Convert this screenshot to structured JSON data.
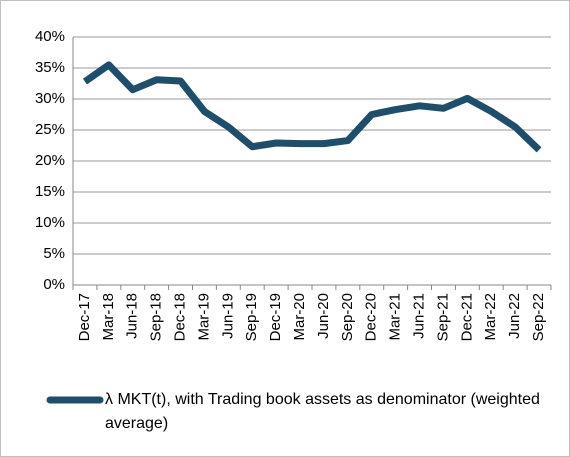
{
  "chart_data": {
    "type": "line",
    "categories": [
      "Dec-17",
      "Mar-18",
      "Jun-18",
      "Sep-18",
      "Dec-18",
      "Mar-19",
      "Jun-19",
      "Sep-19",
      "Dec-19",
      "Mar-20",
      "Jun-20",
      "Sep-20",
      "Dec-20",
      "Mar-21",
      "Jun-21",
      "Sep-21",
      "Dec-21",
      "Mar-22",
      "Jun-22",
      "Sep-22"
    ],
    "series": [
      {
        "name": "λ MKT(t), with Trading book assets as denominator (weighted average)",
        "color": "#1f4e6b",
        "values": [
          32.8,
          35.5,
          31.5,
          33.1,
          32.9,
          28.0,
          25.5,
          22.3,
          22.9,
          22.8,
          22.8,
          23.3,
          27.5,
          28.3,
          28.9,
          28.5,
          30.1,
          28.0,
          25.5,
          21.8
        ]
      }
    ],
    "ylim": [
      0,
      40
    ],
    "yticks": [
      {
        "value": 0,
        "label": "0%"
      },
      {
        "value": 5,
        "label": "5%"
      },
      {
        "value": 10,
        "label": "10%"
      },
      {
        "value": 15,
        "label": "15%"
      },
      {
        "value": 20,
        "label": "20%"
      },
      {
        "value": 25,
        "label": "25%"
      },
      {
        "value": 30,
        "label": "30%"
      },
      {
        "value": 35,
        "label": "35%"
      },
      {
        "value": 40,
        "label": "40%"
      }
    ],
    "grid": true
  }
}
